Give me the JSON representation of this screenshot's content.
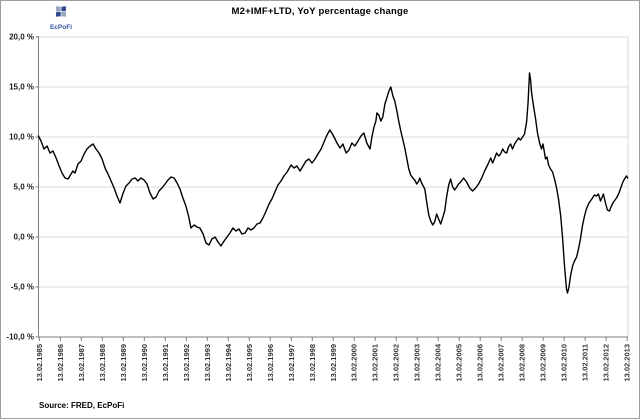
{
  "page": {
    "title": "M2+IMF+LTD, YoY percentage change"
  },
  "logo": {
    "text": "EcPoFi",
    "color": "#33509e",
    "petal_dark": "#2e4a8c",
    "petal_light": "#96a1bd"
  },
  "source_note": "Source: FRED, EcPoFi",
  "colors": {
    "line": "#000000",
    "gridline": "#d9d9d9",
    "axis": "#7f7f7f",
    "tick_label": "#333333",
    "y_label": "#1a1a1a",
    "background": "#ffffff"
  },
  "chart_data": {
    "type": "line",
    "title": "M2+IMF+LTD, YoY percentage change",
    "series_name": "M2+IMF+LTD YoY percentage change",
    "xlabel": "",
    "ylabel": "",
    "grid": "horizontal",
    "legend": "none",
    "ylim": [
      -10,
      20
    ],
    "xlim": [
      1985.08,
      2013.16
    ],
    "y_tick_values": [
      20,
      15,
      10,
      5,
      0,
      -5,
      -10
    ],
    "y_tick_labels": [
      "20,0 %",
      "15,0 %",
      "10,0 %",
      "5,0 %",
      "0,0 %",
      "-5,0 %",
      "-10,0 %"
    ],
    "x_tick_years": [
      1985.12,
      1986.12,
      1987.12,
      1988.12,
      1989.12,
      1990.12,
      1991.12,
      1992.12,
      1993.12,
      1994.12,
      1995.12,
      1996.12,
      1997.12,
      1998.12,
      1999.12,
      2000.12,
      2001.12,
      2002.12,
      2003.12,
      2004.12,
      2005.12,
      2006.12,
      2007.12,
      2008.12,
      2009.12,
      2010.12,
      2011.12,
      2012.12,
      2013.12
    ],
    "x_tick_labels": [
      "13.02.1985",
      "13.02.1986",
      "13.02.1987",
      "13.02.1988",
      "13.02.1989",
      "13.02.1990",
      "13.02.1991",
      "13.02.1992",
      "13.02.1993",
      "13.02.1994",
      "13.02.1995",
      "13.02.1996",
      "13.02.1997",
      "13.02.1998",
      "13.02.1999",
      "13.02.2000",
      "13.02.2001",
      "13.02.2002",
      "13.02.2003",
      "13.02.2004",
      "13.02.2005",
      "13.02.2006",
      "13.02.2007",
      "13.02.2008",
      "13.02.2009",
      "13.02.2010",
      "13.02.2011",
      "13.02.2012",
      "13.02.2013"
    ],
    "points": [
      [
        1985.08,
        10.1
      ],
      [
        1985.2,
        9.6
      ],
      [
        1985.34,
        8.8
      ],
      [
        1985.49,
        9.1
      ],
      [
        1985.63,
        8.4
      ],
      [
        1985.77,
        8.6
      ],
      [
        1985.92,
        7.9
      ],
      [
        1986.06,
        7.1
      ],
      [
        1986.2,
        6.4
      ],
      [
        1986.34,
        5.9
      ],
      [
        1986.49,
        5.8
      ],
      [
        1986.63,
        6.3
      ],
      [
        1986.72,
        6.6
      ],
      [
        1986.82,
        6.4
      ],
      [
        1986.96,
        7.3
      ],
      [
        1987.11,
        7.6
      ],
      [
        1987.25,
        8.3
      ],
      [
        1987.39,
        8.8
      ],
      [
        1987.54,
        9.1
      ],
      [
        1987.68,
        9.3
      ],
      [
        1987.82,
        8.8
      ],
      [
        1987.96,
        8.4
      ],
      [
        1988.11,
        7.8
      ],
      [
        1988.25,
        6.9
      ],
      [
        1988.39,
        6.3
      ],
      [
        1988.54,
        5.6
      ],
      [
        1988.68,
        4.9
      ],
      [
        1988.82,
        4.1
      ],
      [
        1988.96,
        3.4
      ],
      [
        1989.11,
        4.4
      ],
      [
        1989.25,
        5.1
      ],
      [
        1989.39,
        5.4
      ],
      [
        1989.54,
        5.8
      ],
      [
        1989.68,
        5.9
      ],
      [
        1989.82,
        5.6
      ],
      [
        1989.96,
        5.9
      ],
      [
        1990.11,
        5.7
      ],
      [
        1990.25,
        5.3
      ],
      [
        1990.39,
        4.4
      ],
      [
        1990.54,
        3.8
      ],
      [
        1990.68,
        4.0
      ],
      [
        1990.82,
        4.6
      ],
      [
        1990.96,
        4.9
      ],
      [
        1991.11,
        5.3
      ],
      [
        1991.25,
        5.7
      ],
      [
        1991.39,
        6.0
      ],
      [
        1991.54,
        5.9
      ],
      [
        1991.68,
        5.4
      ],
      [
        1991.82,
        4.8
      ],
      [
        1991.96,
        3.9
      ],
      [
        1992.1,
        3.1
      ],
      [
        1992.25,
        1.9
      ],
      [
        1992.34,
        0.9
      ],
      [
        1992.49,
        1.2
      ],
      [
        1992.63,
        1.0
      ],
      [
        1992.77,
        0.9
      ],
      [
        1992.92,
        0.3
      ],
      [
        1993.06,
        -0.6
      ],
      [
        1993.2,
        -0.8
      ],
      [
        1993.34,
        -0.2
      ],
      [
        1993.49,
        0.0
      ],
      [
        1993.63,
        -0.5
      ],
      [
        1993.77,
        -0.9
      ],
      [
        1993.92,
        -0.4
      ],
      [
        1994.06,
        0.0
      ],
      [
        1994.2,
        0.4
      ],
      [
        1994.34,
        0.9
      ],
      [
        1994.49,
        0.6
      ],
      [
        1994.63,
        0.8
      ],
      [
        1994.77,
        0.3
      ],
      [
        1994.92,
        0.4
      ],
      [
        1995.06,
        0.9
      ],
      [
        1995.2,
        0.7
      ],
      [
        1995.34,
        0.9
      ],
      [
        1995.49,
        1.3
      ],
      [
        1995.63,
        1.4
      ],
      [
        1995.77,
        1.9
      ],
      [
        1995.92,
        2.6
      ],
      [
        1996.06,
        3.3
      ],
      [
        1996.2,
        3.8
      ],
      [
        1996.34,
        4.5
      ],
      [
        1996.49,
        5.2
      ],
      [
        1996.63,
        5.6
      ],
      [
        1996.77,
        6.1
      ],
      [
        1996.92,
        6.5
      ],
      [
        1997.11,
        7.2
      ],
      [
        1997.25,
        6.9
      ],
      [
        1997.39,
        7.1
      ],
      [
        1997.54,
        6.6
      ],
      [
        1997.68,
        7.1
      ],
      [
        1997.82,
        7.6
      ],
      [
        1997.96,
        7.8
      ],
      [
        1998.11,
        7.4
      ],
      [
        1998.25,
        7.8
      ],
      [
        1998.39,
        8.3
      ],
      [
        1998.54,
        8.8
      ],
      [
        1998.68,
        9.5
      ],
      [
        1998.82,
        10.2
      ],
      [
        1998.96,
        10.7
      ],
      [
        1999.11,
        10.2
      ],
      [
        1999.3,
        9.4
      ],
      [
        1999.44,
        8.9
      ],
      [
        1999.58,
        9.3
      ],
      [
        1999.73,
        8.4
      ],
      [
        1999.87,
        8.7
      ],
      [
        2000.01,
        9.4
      ],
      [
        2000.15,
        9.1
      ],
      [
        2000.3,
        9.6
      ],
      [
        2000.44,
        10.1
      ],
      [
        2000.58,
        10.4
      ],
      [
        2000.72,
        9.4
      ],
      [
        2000.87,
        8.8
      ],
      [
        2000.96,
        10.0
      ],
      [
        2001.06,
        11.0
      ],
      [
        2001.15,
        11.6
      ],
      [
        2001.2,
        12.4
      ],
      [
        2001.29,
        12.2
      ],
      [
        2001.39,
        11.6
      ],
      [
        2001.48,
        12.0
      ],
      [
        2001.58,
        13.3
      ],
      [
        2001.67,
        13.9
      ],
      [
        2001.77,
        14.6
      ],
      [
        2001.86,
        15.0
      ],
      [
        2001.96,
        14.1
      ],
      [
        2002.05,
        13.6
      ],
      [
        2002.15,
        12.6
      ],
      [
        2002.24,
        11.6
      ],
      [
        2002.34,
        10.6
      ],
      [
        2002.43,
        9.8
      ],
      [
        2002.53,
        8.9
      ],
      [
        2002.62,
        7.9
      ],
      [
        2002.72,
        6.8
      ],
      [
        2002.81,
        6.2
      ],
      [
        2002.91,
        5.9
      ],
      [
        2003.0,
        5.7
      ],
      [
        2003.1,
        5.3
      ],
      [
        2003.19,
        5.6
      ],
      [
        2003.24,
        5.9
      ],
      [
        2003.33,
        5.4
      ],
      [
        2003.48,
        4.8
      ],
      [
        2003.57,
        3.5
      ],
      [
        2003.67,
        2.2
      ],
      [
        2003.76,
        1.6
      ],
      [
        2003.86,
        1.2
      ],
      [
        2003.95,
        1.5
      ],
      [
        2004.05,
        2.3
      ],
      [
        2004.14,
        1.8
      ],
      [
        2004.24,
        1.3
      ],
      [
        2004.33,
        1.9
      ],
      [
        2004.43,
        2.6
      ],
      [
        2004.52,
        4.0
      ],
      [
        2004.62,
        5.2
      ],
      [
        2004.71,
        5.8
      ],
      [
        2004.81,
        5.0
      ],
      [
        2004.9,
        4.7
      ],
      [
        2005.0,
        5.0
      ],
      [
        2005.09,
        5.3
      ],
      [
        2005.19,
        5.5
      ],
      [
        2005.33,
        5.9
      ],
      [
        2005.47,
        5.5
      ],
      [
        2005.62,
        4.9
      ],
      [
        2005.76,
        4.6
      ],
      [
        2005.9,
        4.9
      ],
      [
        2006.04,
        5.3
      ],
      [
        2006.19,
        5.9
      ],
      [
        2006.33,
        6.6
      ],
      [
        2006.47,
        7.2
      ],
      [
        2006.62,
        7.9
      ],
      [
        2006.71,
        7.4
      ],
      [
        2006.81,
        7.9
      ],
      [
        2006.9,
        8.4
      ],
      [
        2007.0,
        8.1
      ],
      [
        2007.09,
        8.3
      ],
      [
        2007.19,
        8.8
      ],
      [
        2007.28,
        8.5
      ],
      [
        2007.38,
        8.4
      ],
      [
        2007.47,
        9.0
      ],
      [
        2007.57,
        9.3
      ],
      [
        2007.66,
        8.8
      ],
      [
        2007.76,
        9.3
      ],
      [
        2007.85,
        9.6
      ],
      [
        2007.95,
        9.9
      ],
      [
        2008.04,
        9.7
      ],
      [
        2008.14,
        10.0
      ],
      [
        2008.23,
        10.3
      ],
      [
        2008.33,
        11.5
      ],
      [
        2008.4,
        13.5
      ],
      [
        2008.47,
        16.4
      ],
      [
        2008.52,
        15.7
      ],
      [
        2008.57,
        14.4
      ],
      [
        2008.66,
        13.1
      ],
      [
        2008.76,
        11.8
      ],
      [
        2008.85,
        10.4
      ],
      [
        2008.95,
        9.4
      ],
      [
        2009.04,
        8.8
      ],
      [
        2009.11,
        9.3
      ],
      [
        2009.19,
        8.3
      ],
      [
        2009.23,
        7.8
      ],
      [
        2009.3,
        8.0
      ],
      [
        2009.38,
        7.2
      ],
      [
        2009.47,
        6.8
      ],
      [
        2009.57,
        6.5
      ],
      [
        2009.66,
        5.8
      ],
      [
        2009.76,
        4.9
      ],
      [
        2009.85,
        3.8
      ],
      [
        2009.95,
        2.2
      ],
      [
        2010.04,
        0.0
      ],
      [
        2010.14,
        -3.0
      ],
      [
        2010.23,
        -5.2
      ],
      [
        2010.28,
        -5.6
      ],
      [
        2010.35,
        -5.0
      ],
      [
        2010.42,
        -3.9
      ],
      [
        2010.52,
        -2.9
      ],
      [
        2010.61,
        -2.4
      ],
      [
        2010.71,
        -2.0
      ],
      [
        2010.8,
        -1.2
      ],
      [
        2010.9,
        -0.1
      ],
      [
        2010.99,
        1.1
      ],
      [
        2011.09,
        2.1
      ],
      [
        2011.18,
        2.8
      ],
      [
        2011.28,
        3.3
      ],
      [
        2011.37,
        3.6
      ],
      [
        2011.47,
        3.9
      ],
      [
        2011.56,
        4.2
      ],
      [
        2011.66,
        4.1
      ],
      [
        2011.75,
        4.3
      ],
      [
        2011.85,
        3.6
      ],
      [
        2011.99,
        4.3
      ],
      [
        2012.09,
        3.4
      ],
      [
        2012.18,
        2.7
      ],
      [
        2012.28,
        2.6
      ],
      [
        2012.37,
        3.1
      ],
      [
        2012.47,
        3.5
      ],
      [
        2012.61,
        3.9
      ],
      [
        2012.71,
        4.3
      ],
      [
        2012.8,
        4.8
      ],
      [
        2012.9,
        5.4
      ],
      [
        2012.99,
        5.8
      ],
      [
        2013.09,
        6.1
      ],
      [
        2013.14,
        5.9
      ]
    ]
  }
}
